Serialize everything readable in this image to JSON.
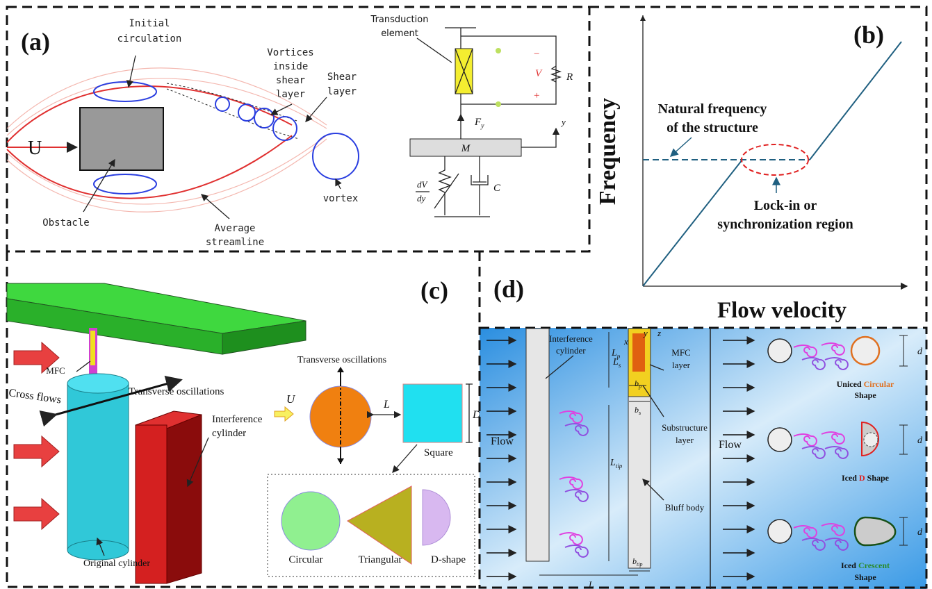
{
  "panels": {
    "a": {
      "label": "(a)",
      "initial_circulation": [
        "Initial",
        "circulation"
      ],
      "vortices_inside_shear_layer": [
        "Vortices",
        "inside",
        "shear",
        "layer"
      ],
      "shear_layer": [
        "Shear",
        "layer"
      ],
      "flow": "U",
      "obstacle": "Obstacle",
      "average_streamline": [
        "Average",
        "streamline"
      ],
      "vortex": "vortex",
      "transduction_element": [
        "Transduction",
        "element"
      ],
      "voltage": "V",
      "resistance": "R",
      "minus": "−",
      "plus": "+",
      "force": {
        "symbol": "F",
        "subscript": "y"
      },
      "mass": "M",
      "displacement": "y",
      "coupling": {
        "numerator": "dV",
        "denominator": "dy"
      },
      "damping": "C"
    },
    "b": {
      "label": "(b)",
      "y_axis": "Frequency",
      "x_axis": "Flow velocity",
      "natural_frequency": [
        "Natural frequency",
        "of the structure"
      ],
      "lock_in": [
        "Lock-in or",
        "synchronization region"
      ]
    },
    "c": {
      "label": "(c)",
      "mfc": "MFC",
      "transverse_oscillations": "Transverse oscillations",
      "cross_flows": "Cross flows",
      "interference_cylinder": [
        "Interference",
        "cylinder"
      ],
      "original_cylinder": "Original cylinder",
      "top_oscillations": "Transverse oscillations",
      "flow": "U",
      "spacing": "L",
      "size": "D",
      "square": "Square",
      "shapes": [
        "Circular",
        "Triangular",
        "D-shape"
      ]
    },
    "d": {
      "label": "(d)",
      "flow_left": "Flow",
      "interference_cylinder": [
        "Interference",
        "cylinder"
      ],
      "ls": {
        "symbol": "L",
        "subscript": "s"
      },
      "lp": {
        "symbol": "L",
        "subscript": "p"
      },
      "axes": [
        "x",
        "y",
        "z"
      ],
      "mfc_layer": [
        "MFC",
        "layer"
      ],
      "bp": {
        "symbol": "b",
        "subscript": "p"
      },
      "bs": {
        "symbol": "b",
        "subscript": "s"
      },
      "substructure_layer": [
        "Substructure",
        "layer"
      ],
      "ltip": {
        "symbol": "L",
        "subscript": "tip"
      },
      "bluff_body": "Bluff body",
      "btip": {
        "symbol": "b",
        "subscript": "tip"
      },
      "spacing": "L",
      "flow_right": "Flow",
      "diameter": [
        "d",
        "d",
        "d"
      ],
      "uniced": [
        [
          "Uniced",
          "Circular"
        ],
        "Shape"
      ],
      "iced_d": [
        "Iced",
        "D",
        "Shape"
      ],
      "iced_crescent": [
        [
          "Iced",
          "Crescent"
        ],
        "Shape"
      ]
    }
  }
}
